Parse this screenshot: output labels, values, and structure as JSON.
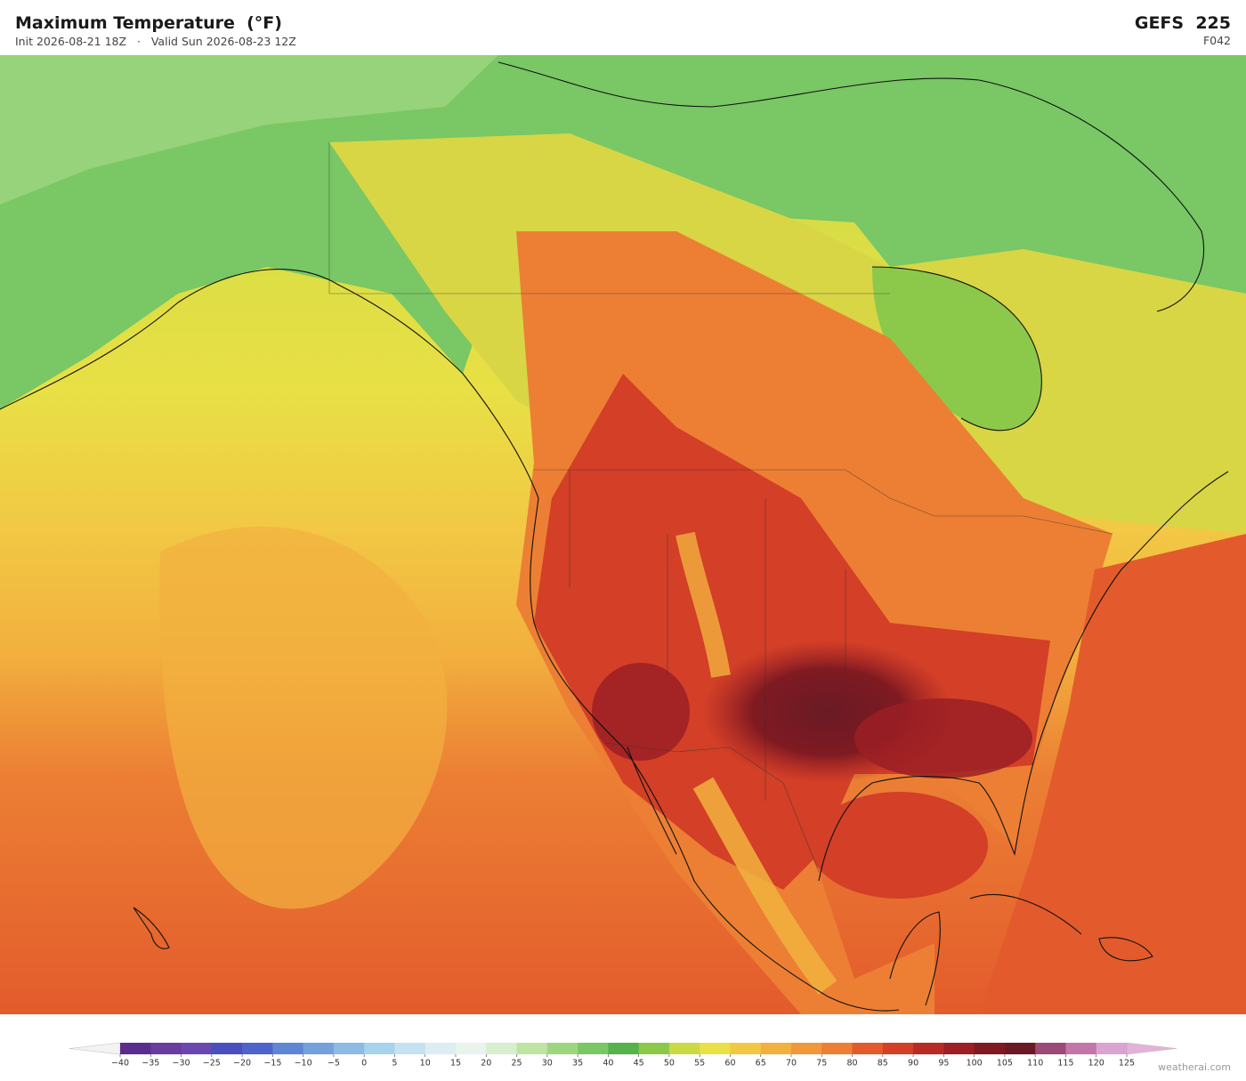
{
  "header": {
    "title": "Maximum Temperature  (°F)",
    "subtitle": "Init 2026-08-21 18Z   ·   Valid Sun 2026-08-23 12Z",
    "model": "GEFS  225",
    "forecast_hour": "F042"
  },
  "colorbar": {
    "ticks": [
      {
        "value": -40,
        "label": "−40"
      },
      {
        "value": -35,
        "label": "−35"
      },
      {
        "value": -30,
        "label": "−30"
      },
      {
        "value": -25,
        "label": "−25"
      },
      {
        "value": -20,
        "label": "−20"
      },
      {
        "value": -15,
        "label": "−15"
      },
      {
        "value": -10,
        "label": "−10"
      },
      {
        "value": -5,
        "label": "−5"
      },
      0,
      5,
      10,
      15,
      20,
      25,
      30,
      35,
      40,
      45,
      50,
      55,
      60,
      65,
      70,
      75,
      80,
      85,
      90,
      95,
      100,
      105,
      110,
      115,
      120,
      125
    ],
    "colors": [
      "#5a2d8c",
      "#6a3c9e",
      "#6b48b0",
      "#4a4fc0",
      "#4f63cc",
      "#5f86d4",
      "#74a0dc",
      "#8dbbe3",
      "#a8d3ec",
      "#c4e2f1",
      "#dcedf3",
      "#e8f4ec",
      "#d8eecf",
      "#bfe3a3",
      "#9ed680",
      "#79c765",
      "#55b24d",
      "#8cc84a",
      "#c9da45",
      "#e8e045",
      "#f2c744",
      "#f2b13e",
      "#f0983a",
      "#ec7f34",
      "#e35b2c",
      "#d33f27",
      "#b82a25",
      "#9b1f24",
      "#7f1a22",
      "#6a1a24",
      "#9b4a78",
      "#c277a8",
      "#d9a4cf"
    ],
    "under_color": "#f3f3f3",
    "over_color": "#e3b2d8"
  },
  "watermark": "weatherai.com"
}
